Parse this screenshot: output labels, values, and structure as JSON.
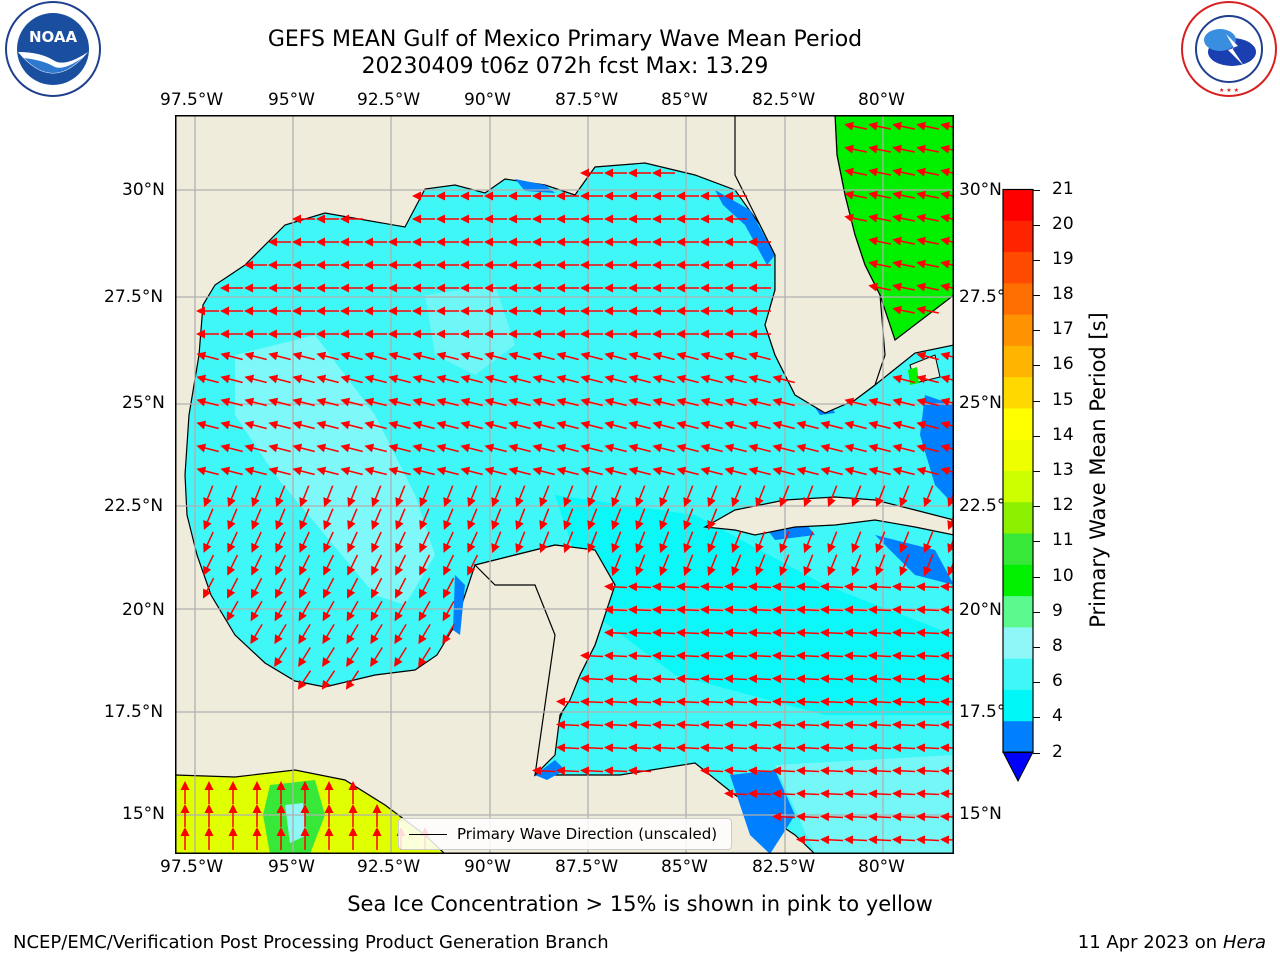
{
  "title": {
    "line1": "GEFS MEAN Gulf of Mexico Primary Wave Mean Period",
    "line2": "20230409 t06z 072h fcst   Max: 13.29"
  },
  "logos": {
    "left": {
      "icon": "noaa-logo",
      "text": "NOAA",
      "ring_text": "NATIONAL OCEANIC AND ATMOSPHERIC ADMINISTRATION · U.S. DEPARTMENT OF COMMERCE"
    },
    "right": {
      "icon": "nws-logo",
      "ring_text": "NATIONAL WEATHER SERVICE"
    }
  },
  "map": {
    "lon_labels": [
      "97.5°W",
      "95°W",
      "92.5°W",
      "90°W",
      "87.5°W",
      "85°W",
      "82.5°W",
      "80°W"
    ],
    "lat_labels_left": [
      "30°N",
      "27.5°N",
      "25°N",
      "22.5°N",
      "20°N",
      "17.5°N",
      "15°N"
    ],
    "lat_labels_right": [
      "30°N",
      "27.5°N",
      "25°N",
      "22.5°N",
      "20°N",
      "17.5°N",
      "15°N"
    ],
    "land_color": "#efecdc",
    "ocean_colors": {
      "light": "#8ff7f7",
      "mid": "#3ff7f7",
      "cyan": "#00f7f7",
      "blue": "#0080ff",
      "green": "#00f000",
      "yellow": "#e0ff00"
    },
    "arrow_color": "#ff0000",
    "grid": true
  },
  "legend": {
    "label": "Primary Wave Direction (unscaled)"
  },
  "colorbar": {
    "label": "Primary Wave Mean Period [s]",
    "ticks": [
      "21",
      "20",
      "19",
      "18",
      "17",
      "16",
      "15",
      "14",
      "13",
      "12",
      "11",
      "10",
      "9",
      "8",
      "6",
      "4",
      "2"
    ],
    "colors_top_to_bottom": [
      "#ff0000",
      "#ff2400",
      "#ff4a00",
      "#ff6e00",
      "#ff9200",
      "#ffb400",
      "#ffd800",
      "#ffff00",
      "#eeff00",
      "#ccff00",
      "#8cf000",
      "#38e838",
      "#00f000",
      "#5cf98e",
      "#8ff7f7",
      "#3ff7f7",
      "#00f7f7",
      "#0080ff"
    ],
    "under_color": "#0000ff"
  },
  "notes": {
    "sea_ice": "Sea Ice Concentration > 15% is shown in pink to yellow",
    "footer_left": "NCEP/EMC/Verification Post Processing Product Generation Branch",
    "footer_date": "11 Apr 2023 on ",
    "footer_host": "Hera"
  }
}
